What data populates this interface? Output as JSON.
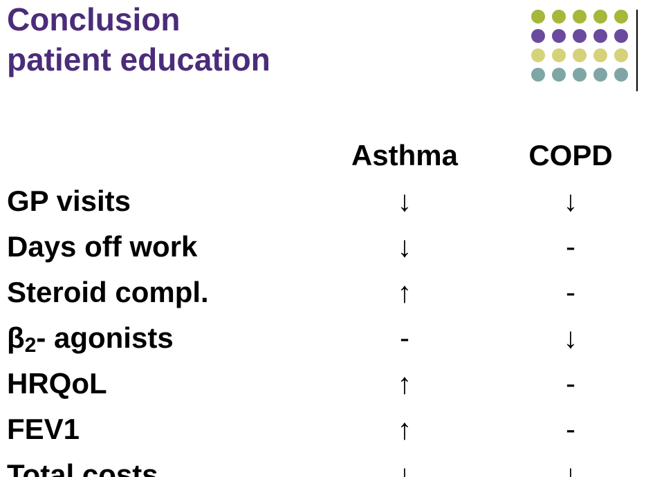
{
  "title_line1": "Conclusion",
  "title_line2": "patient education",
  "title_color": "#4b2c7a",
  "dot_grid": {
    "rows": 4,
    "cols": 5,
    "gap": 10,
    "dot_size": 20,
    "colors": [
      [
        "#a6b739",
        "#a6b739",
        "#a6b739",
        "#a6b739",
        "#a6b739"
      ],
      [
        "#6a4a9c",
        "#6a4a9c",
        "#6a4a9c",
        "#6a4a9c",
        "#6a4a9c"
      ],
      [
        "#d6d27a",
        "#d6d27a",
        "#d6d27a",
        "#d6d27a",
        "#d6d27a"
      ],
      [
        "#7fa6a5",
        "#7fa6a5",
        "#7fa6a5",
        "#7fa6a5",
        "#7fa6a5"
      ]
    ]
  },
  "vline_color": "#000000",
  "columns": {
    "asthma": "Asthma",
    "copd": "COPD"
  },
  "arrows": {
    "down": "↓",
    "up": "↑",
    "dash": "-"
  },
  "rows": [
    {
      "label": "GP visits",
      "asthma": "↓",
      "copd": "↓"
    },
    {
      "label": "Days off work",
      "asthma": "↓",
      "copd": "-"
    },
    {
      "label": "Steroid compl.",
      "asthma": "↑",
      "copd": "-"
    },
    {
      "label": "β2- agonists",
      "asthma": "-",
      "copd": "↓",
      "beta": true
    },
    {
      "label": "HRQoL",
      "asthma": "↑",
      "copd": "-"
    },
    {
      "label": "FEV1",
      "asthma": "↑",
      "copd": "-"
    },
    {
      "label": "Total costs",
      "asthma": "↓",
      "copd": "↓"
    }
  ],
  "beta_parts": {
    "beta": "β",
    "sub": "2",
    "rest": "- agonists"
  },
  "body_fontsize": 42,
  "title_fontsize": 46,
  "background_color": "#ffffff"
}
